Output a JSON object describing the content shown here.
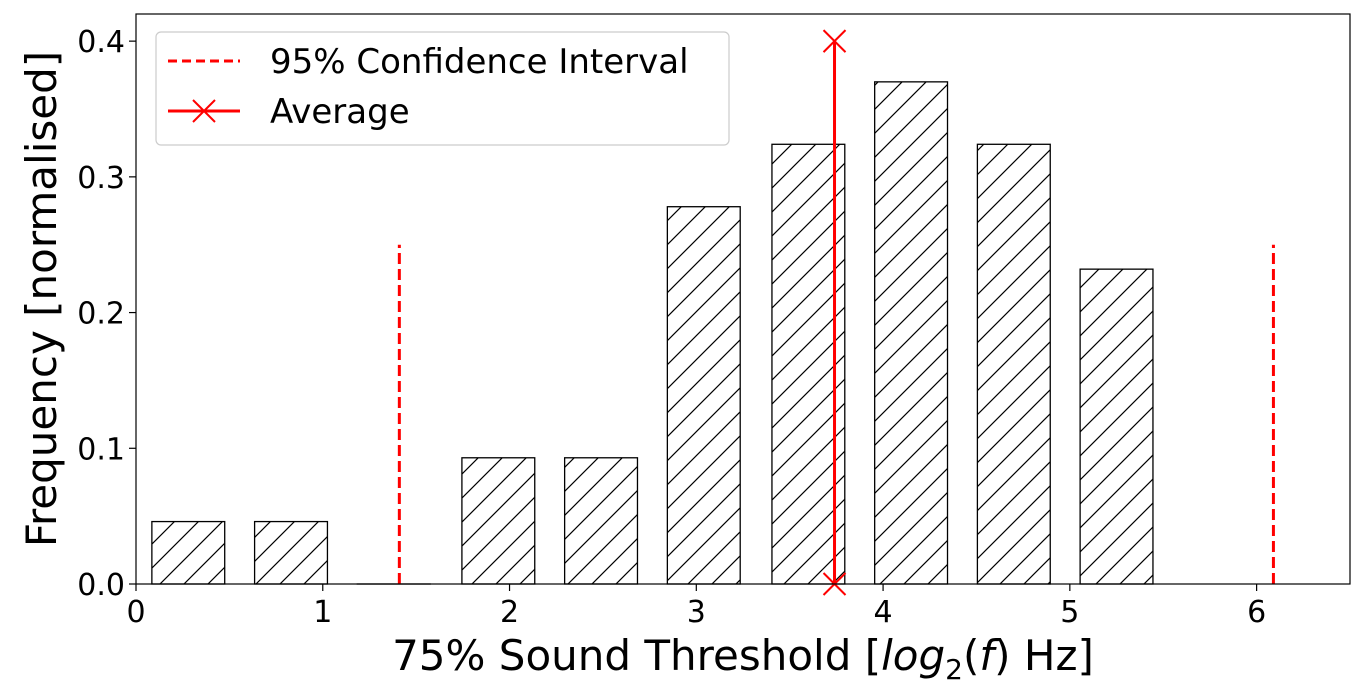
{
  "chart_data": {
    "type": "bar",
    "xlabel": {
      "prefix": "75% Sound Threshold [",
      "log": "log",
      "sub": "2",
      "open": "(",
      "f": "f",
      "suffix": ") Hz]"
    },
    "ylabel": "Frequency [normalised]",
    "xlim": [
      0,
      6.5
    ],
    "ylim": [
      0,
      0.42
    ],
    "xticks": [
      0,
      1,
      2,
      3,
      4,
      5,
      6
    ],
    "yticks": [
      0.0,
      0.1,
      0.2,
      0.3,
      0.4
    ],
    "ytick_labels": [
      "0.0",
      "0.1",
      "0.2",
      "0.3",
      "0.4"
    ],
    "bar_width": 0.39,
    "hatch": "forward-diagonal",
    "bars": [
      {
        "x": 0.28,
        "value": 0.046
      },
      {
        "x": 0.83,
        "value": 0.046
      },
      {
        "x": 1.38,
        "value": 0.0
      },
      {
        "x": 1.94,
        "value": 0.093
      },
      {
        "x": 2.49,
        "value": 0.093
      },
      {
        "x": 3.04,
        "value": 0.278
      },
      {
        "x": 3.6,
        "value": 0.324
      },
      {
        "x": 4.15,
        "value": 0.37
      },
      {
        "x": 4.7,
        "value": 0.324
      },
      {
        "x": 5.25,
        "value": 0.232
      }
    ],
    "confidence_interval": {
      "name": "95% Confidence Interval",
      "x": [
        1.41,
        6.09
      ],
      "height": 0.25,
      "color": "#ff0000",
      "style": "dashed"
    },
    "average": {
      "name": "Average",
      "x": 3.74,
      "height": 0.4,
      "color": "#ff0000",
      "marker": "x"
    },
    "legend": {
      "position": "top-left",
      "entries": [
        "95% Confidence Interval",
        "Average"
      ]
    },
    "grid": false
  }
}
